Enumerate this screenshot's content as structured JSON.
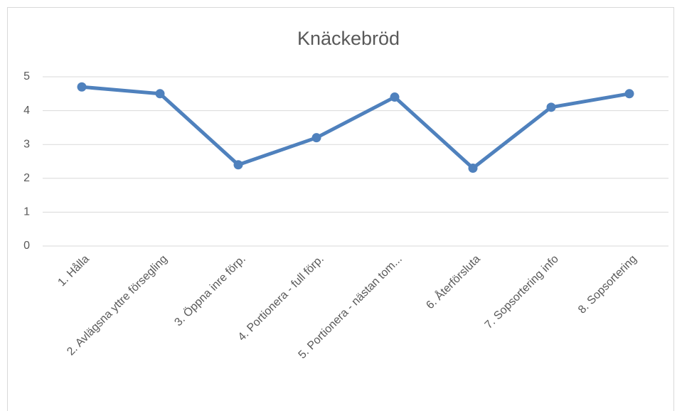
{
  "chart_data": {
    "type": "line",
    "title": "Knäckebröd",
    "categories": [
      "1. Hålla",
      "2. Avlägsna yttre försegling",
      "3. Öppna inre förp.",
      "4. Portionera - full förp.",
      "5. Portionera - nästan tom...",
      "6. Återförsluta",
      "7. Sopsortering info",
      "8. Sopsortering"
    ],
    "values": [
      4.7,
      4.5,
      2.4,
      3.2,
      4.4,
      2.3,
      4.1,
      4.5
    ],
    "color": "#4f81bd",
    "ylim": [
      0,
      5
    ],
    "yticks": [
      0,
      1,
      2,
      3,
      4,
      5
    ],
    "grid": true
  }
}
